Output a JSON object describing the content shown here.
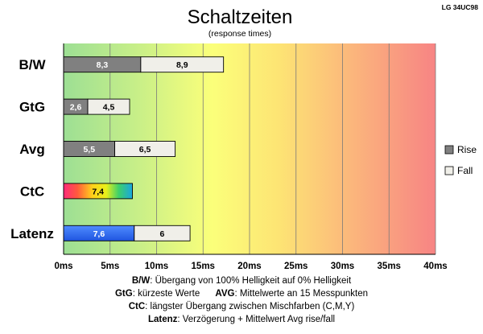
{
  "chart_data": {
    "type": "bar",
    "title": "Schaltzeiten",
    "subtitle": "(response times)",
    "model": "LG 34UC98",
    "x_unit": "ms",
    "xlim": [
      0,
      40
    ],
    "xticks": [
      0,
      5,
      10,
      15,
      20,
      25,
      30,
      35,
      40
    ],
    "xtick_labels": [
      "0ms",
      "5ms",
      "10ms",
      "15ms",
      "20ms",
      "25ms",
      "30ms",
      "35ms",
      "40ms"
    ],
    "categories": [
      "B/W",
      "GtG",
      "Avg",
      "CtC",
      "Latenz"
    ],
    "stacked": true,
    "grid": "vertical",
    "background": "gradient green-yellow-red",
    "series": [
      {
        "name": "Rise",
        "color": "#808080",
        "values": [
          8.3,
          2.6,
          5.5,
          null,
          null
        ]
      },
      {
        "name": "Fall",
        "color": "#f0efe9",
        "values": [
          8.9,
          4.5,
          6.5,
          null,
          6
        ]
      }
    ],
    "special_bars": [
      {
        "category": "CtC",
        "value": 7.4,
        "label": "7,4",
        "style": "rainbow"
      },
      {
        "category": "Latenz",
        "value": 7.6,
        "label": "7,6",
        "style": "blue"
      }
    ],
    "value_labels": {
      "B/W": [
        "8,3",
        "8,9"
      ],
      "GtG": [
        "2,6",
        "4,5"
      ],
      "Avg": [
        "5,5",
        "6,5"
      ],
      "Latenz_fall": "6"
    },
    "legend": {
      "position": "right",
      "items": [
        "Rise",
        "Fall"
      ]
    }
  },
  "footer": {
    "line1_key": "B/W",
    "line1_text": ":  Übergang von 100% Helligkeit auf 0% Helligkeit",
    "line2_key1": "GtG",
    "line2_text1": ": kürzeste  Werte",
    "line2_key2": "AVG",
    "line2_text2": ": Mittelwerte  an 15 Messpunkten",
    "line3_key": "CtC",
    "line3_text": ": längster Übergang  zwischen Mischfarben (C,M,Y)",
    "line4_key": "Latenz",
    "line4_text": ": Verzögerung  + Mittelwert Avg rise/fall"
  }
}
